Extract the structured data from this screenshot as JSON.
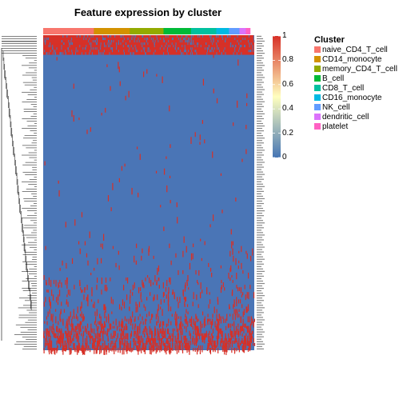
{
  "chart_data": {
    "type": "heatmap",
    "title": "Feature expression by cluster",
    "value_range": [
      0,
      1
    ],
    "colorbar": {
      "ticks": [
        0,
        0.2,
        0.4,
        0.6,
        0.8,
        1
      ],
      "tick_labels": [
        "0",
        "0.2",
        "0.4",
        "0.6",
        "0.8",
        "1"
      ],
      "colors": [
        "#4575b4",
        "#ffffbf",
        "#d73027"
      ]
    },
    "annotation_legend": {
      "title": "Cluster",
      "items": [
        {
          "label": "naive_CD4_T_cell",
          "color": "#f8766d",
          "column_share": 0.24
        },
        {
          "label": "CD14_monocyte",
          "color": "#d39200",
          "column_share": 0.17
        },
        {
          "label": "memory_CD4_T_cell",
          "color": "#93aa00",
          "column_share": 0.16
        },
        {
          "label": "B_cell",
          "color": "#00ba38",
          "column_share": 0.13
        },
        {
          "label": "CD8_T_cell",
          "color": "#00c19f",
          "column_share": 0.12
        },
        {
          "label": "CD16_monocyte",
          "color": "#00b9e3",
          "column_share": 0.06
        },
        {
          "label": "NK_cell",
          "color": "#619cff",
          "column_share": 0.05
        },
        {
          "label": "dendritic_cell",
          "color": "#db72fb",
          "column_share": 0.03
        },
        {
          "label": "platelet",
          "color": "#ff61c3",
          "column_share": 0.02
        }
      ]
    },
    "rows": {
      "count": 130,
      "pattern": "top ~8 features highly expressed (near 1) across all cells; middle features near 0 with sparse high values; bottom ~30 features increasingly dense high values"
    }
  }
}
